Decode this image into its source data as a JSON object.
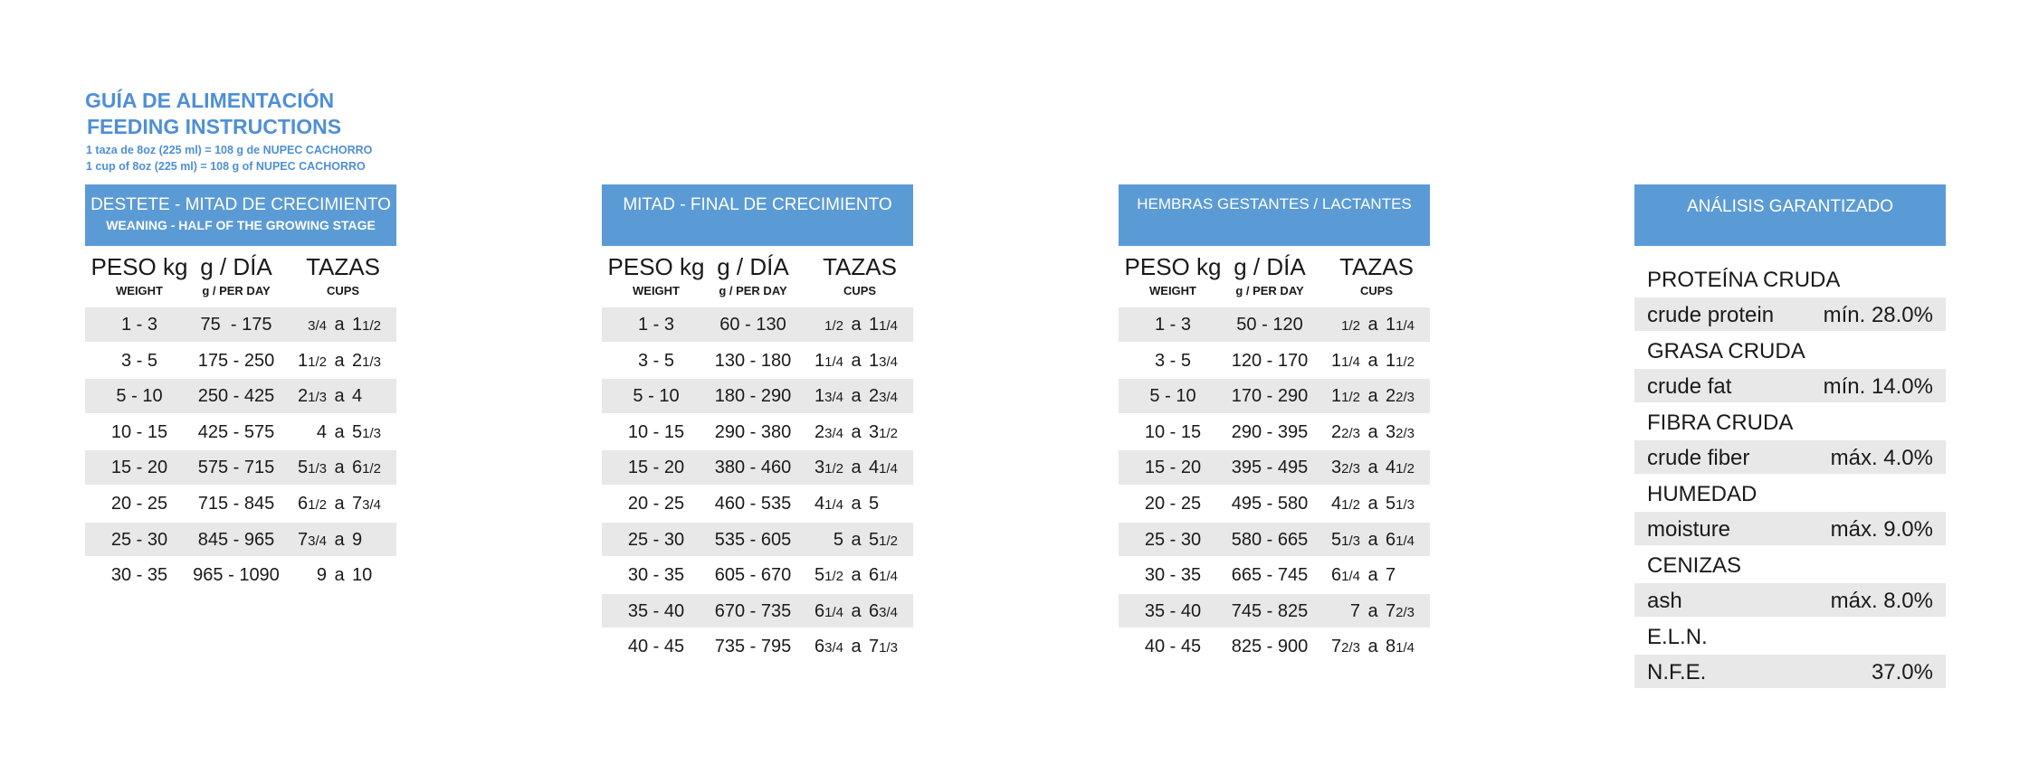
{
  "header": {
    "title": "GUÍA DE ALIMENTACIÓN",
    "title_en": "FEEDING INSTRUCTIONS",
    "note": "1 taza de 8oz (225 ml) = 108 g de NUPEC CACHORRO",
    "note_en": "1 cup of 8oz (225 ml) = 108 g of NUPEC CACHORRO"
  },
  "connector": "a",
  "columns": [
    {
      "label": "PESO kg",
      "sub": "WEIGHT"
    },
    {
      "label": "g / DÍA",
      "sub": "g / PER DAY"
    },
    {
      "label": "TAZAS",
      "sub": "CUPS"
    }
  ],
  "tables": [
    {
      "title": "DESTETE - MITAD DE CRECIMIENTO",
      "subtitle": "WEANING - HALF OF THE GROWING STAGE",
      "rows": [
        [
          "1 - 3",
          "75  - 175",
          "3/4",
          "1 1/2"
        ],
        [
          "3 - 5",
          "175 - 250",
          "1 1/2",
          "2 1/3"
        ],
        [
          "5 - 10",
          "250 - 425",
          "2 1/3",
          "4"
        ],
        [
          "10 - 15",
          "425 - 575",
          "4",
          "5 1/3"
        ],
        [
          "15 - 20",
          "575 - 715",
          "5 1/3",
          "6 1/2"
        ],
        [
          "20 - 25",
          "715 - 845",
          "6 1/2",
          "7 3/4"
        ],
        [
          "25 - 30",
          "845 - 965",
          "7 3/4",
          "9"
        ],
        [
          "30 - 35",
          "965 - 1090",
          "9",
          "10"
        ]
      ]
    },
    {
      "title": "MITAD - FINAL DE CRECIMIENTO",
      "rows": [
        [
          "1 - 3",
          "60 - 130",
          "1/2",
          "1 1/4"
        ],
        [
          "3 - 5",
          "130 - 180",
          "1 1/4",
          "1 3/4"
        ],
        [
          "5 - 10",
          "180 - 290",
          "1 3/4",
          "2 3/4"
        ],
        [
          "10 - 15",
          "290 - 380",
          "2 3/4",
          "3 1/2"
        ],
        [
          "15 - 20",
          "380 - 460",
          "3 1/2",
          "4 1/4"
        ],
        [
          "20 - 25",
          "460 - 535",
          "4 1/4",
          "5"
        ],
        [
          "25 - 30",
          "535 - 605",
          "5",
          "5 1/2"
        ],
        [
          "30 - 35",
          "605 - 670",
          "5 1/2",
          "6 1/4"
        ],
        [
          "35 - 40",
          "670 - 735",
          "6 1/4",
          "6 3/4"
        ],
        [
          "40 - 45",
          "735 - 795",
          "6 3/4",
          "7 1/3"
        ]
      ]
    },
    {
      "title": "HEMBRAS GESTANTES / LACTANTES",
      "rows": [
        [
          "1 - 3",
          "50 - 120",
          "1/2",
          "1 1/4"
        ],
        [
          "3 - 5",
          "120 - 170",
          "1 1/4",
          "1 1/2"
        ],
        [
          "5 - 10",
          "170 - 290",
          "1 1/2",
          "2 2/3"
        ],
        [
          "10 - 15",
          "290 - 395",
          "2 2/3",
          "3 2/3"
        ],
        [
          "15 - 20",
          "395 - 495",
          "3 2/3",
          "4 1/2"
        ],
        [
          "20 - 25",
          "495 - 580",
          "4 1/2",
          "5 1/3"
        ],
        [
          "25 - 30",
          "580 - 665",
          "5 1/3",
          "6 1/4"
        ],
        [
          "30 - 35",
          "665 - 745",
          "6 1/4",
          "7"
        ],
        [
          "35 - 40",
          "745 - 825",
          "7",
          "7 2/3"
        ],
        [
          "40 - 45",
          "825 - 900",
          "7 2/3",
          "8 1/4"
        ]
      ]
    }
  ],
  "analysis": {
    "title": "ANÁLISIS GARANTIZADO",
    "items": [
      {
        "label": "PROTEÍNA CRUDA",
        "sub": "crude protein",
        "value": "mín. 28.0%"
      },
      {
        "label": "GRASA CRUDA",
        "sub": "crude fat",
        "value": "mín. 14.0%"
      },
      {
        "label": "FIBRA CRUDA",
        "sub": "crude fiber",
        "value": "máx. 4.0%"
      },
      {
        "label": "HUMEDAD",
        "sub": "moisture",
        "value": "máx. 9.0%"
      },
      {
        "label": "CENIZAS",
        "sub": "ash",
        "value": "máx. 8.0%"
      },
      {
        "label": "E.L.N.",
        "sub": "N.F.E.",
        "value": "37.0%"
      }
    ]
  }
}
